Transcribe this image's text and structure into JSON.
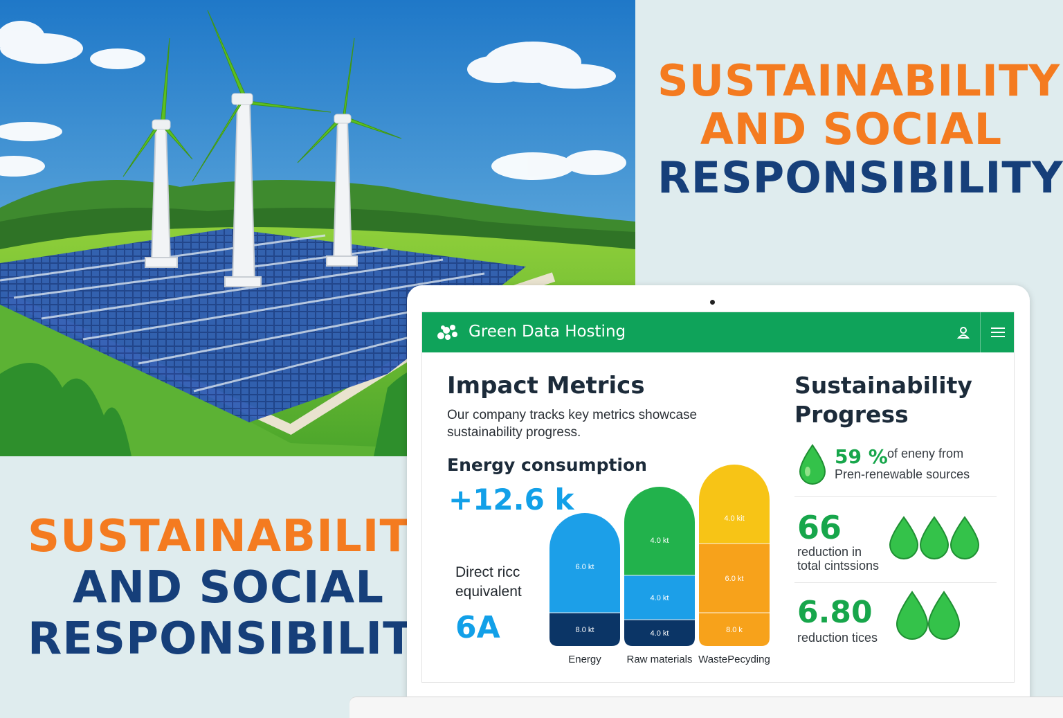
{
  "headline_top": {
    "line1": "SUSTAINABILITY",
    "line2": "AND SOCIAL",
    "line3": "RESPONSIBILITY"
  },
  "headline_bottom": {
    "line1": "SUSTAINABILITY",
    "line2": "AND SOCIAL",
    "line3": "RESPONSIBILITY"
  },
  "colors": {
    "orange": "#f47b20",
    "navy": "#163f7a",
    "brand_green": "#0fa35a",
    "accent_blue": "#12a0e8"
  },
  "app": {
    "title": "Green Data Hosting",
    "user_icon": "user-icon",
    "menu_icon": "hamburger-menu-icon"
  },
  "impact": {
    "title": "Impact Metrics",
    "description": "Our company tracks key metrics showcase sustainability progress.",
    "energy_label": "Energy consumption",
    "energy_value": "+12.6 k",
    "direct_label_1": "Direct ricc",
    "direct_label_2": "equivalent",
    "direct_value": "6A"
  },
  "chart_data": {
    "type": "bar",
    "stacked": true,
    "categories": [
      "Energy",
      "Raw materials",
      "WastePecyding"
    ],
    "bars": [
      {
        "category": "Energy",
        "segments": [
          {
            "label": "8.0 kt",
            "color": "#0b3566"
          },
          {
            "label": "6.0 kt",
            "color": "#1c9fe8"
          }
        ]
      },
      {
        "category": "Raw materials",
        "segments": [
          {
            "label": "4.0 kt",
            "color": "#0b3566"
          },
          {
            "label": "4.0 kt",
            "color": "#1c9fe8"
          },
          {
            "label": "4.0 kt",
            "color": "#22b24c"
          }
        ]
      },
      {
        "category": "WastePecyding",
        "segments": [
          {
            "label": "8.0 k",
            "color": "#f7a21b"
          },
          {
            "label": "6.0 kt",
            "color": "#f7a21b"
          },
          {
            "label": "4.0 kit",
            "color": "#f7c416"
          }
        ]
      }
    ]
  },
  "progress": {
    "title_1": "Sustainability",
    "title_2": "Progress",
    "stat1_value": "59 %",
    "stat1_text_1": "of eneny from",
    "stat1_text_2": "Pren-renewable sources",
    "stat2_value": "66",
    "stat2_text_1": "reduction  in",
    "stat2_text_2": "total cintssions",
    "stat3_value": "6.80",
    "stat3_text_1": "reduction tices"
  }
}
